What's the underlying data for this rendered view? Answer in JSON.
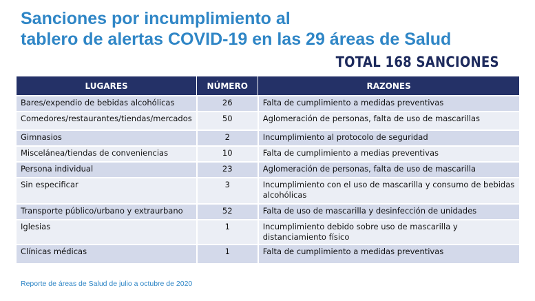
{
  "title": {
    "line1": "Sanciones por incumplimiento al",
    "line2": "tablero de alertas COVID-19 en las 29 áreas de Salud"
  },
  "total": "TOTAL 168 SANCIONES",
  "table": {
    "headers": [
      "LUGARES",
      "NÚMERO",
      "RAZONES"
    ],
    "rows": [
      {
        "lugar": "Bares/expendio de bebidas alcohólicas",
        "numero": "26",
        "razon": "Falta de cumplimiento a medidas preventivas"
      },
      {
        "lugar": "Comedores/restaurantes/tiendas/mercados",
        "numero": "50",
        "razon": "Aglomeración de personas, falta de uso de mascarillas"
      },
      {
        "lugar": "Gimnasios",
        "numero": "2",
        "razon": "Incumplimiento al protocolo de seguridad"
      },
      {
        "lugar": "Miscelánea/tiendas de conveniencias",
        "numero": "10",
        "razon": "Falta de cumplimiento a medias preventivas"
      },
      {
        "lugar": "Persona individual",
        "numero": "23",
        "razon": "Aglomeración de personas, falta de uso de mascarilla"
      },
      {
        "lugar": "Sin especificar",
        "numero": "3",
        "razon": "Incumplimiento con el uso de mascarilla y consumo de bebidas alcohólicas"
      },
      {
        "lugar": "Transporte público/urbano y extraurbano",
        "numero": "52",
        "razon": "Falta de uso de mascarilla y desinfección de unidades"
      },
      {
        "lugar": "Iglesias",
        "numero": "1",
        "razon": "Incumplimiento debido sobre uso de mascarilla y distanciamiento físico"
      },
      {
        "lugar": "Clínicas médicas",
        "numero": "1",
        "razon": "Falta de cumplimiento a medidas preventivas"
      }
    ]
  },
  "footer": "Reporte de áreas de Salud de julio a octubre de 2020",
  "colors": {
    "title": "#2f86c6",
    "total": "#1d2a5c",
    "header_bg": "#243167",
    "row_dark": "#d3d9ea",
    "row_light": "#ebeef5"
  }
}
